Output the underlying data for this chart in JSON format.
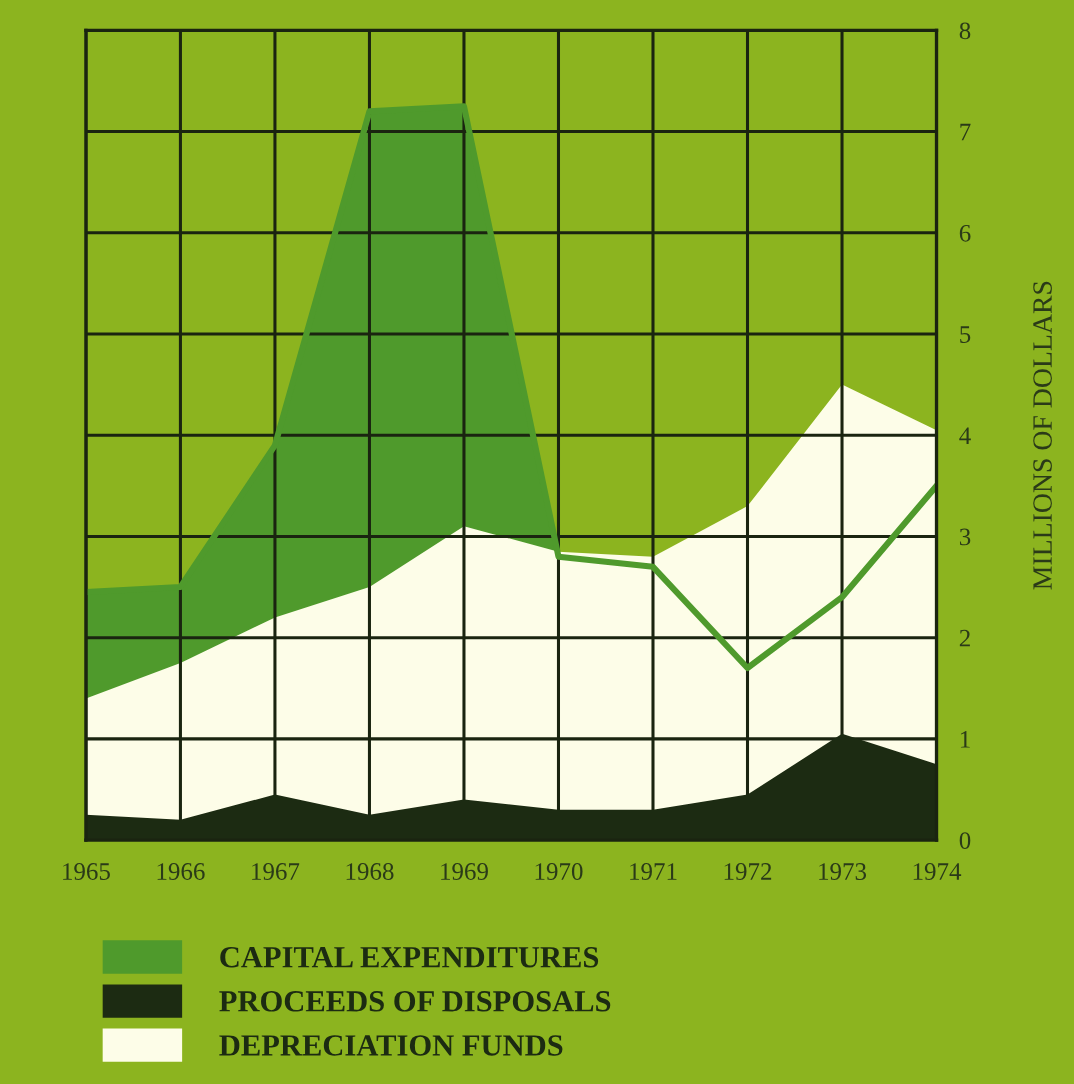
{
  "chart_data": {
    "type": "area",
    "ylabel": "MILLIONS OF DOLLARS",
    "x": [
      1965,
      1966,
      1967,
      1968,
      1969,
      1970,
      1971,
      1972,
      1973,
      1974
    ],
    "xlim": [
      1965,
      1974
    ],
    "xticks": [
      1965,
      1966,
      1967,
      1968,
      1969,
      1970,
      1971,
      1972,
      1973,
      1974
    ],
    "ylim": [
      0,
      8
    ],
    "yticks": [
      0,
      1,
      2,
      3,
      4,
      5,
      6,
      7,
      8
    ],
    "grid": true,
    "legend": "bottom",
    "series": [
      {
        "name": "CAPITAL EXPENDITURES",
        "color": "#4f9a2c",
        "values": [
          2.45,
          2.5,
          3.9,
          7.2,
          7.25,
          2.8,
          2.7,
          1.7,
          2.4,
          3.5
        ]
      },
      {
        "name": "PROCEEDS OF DISPOSALS",
        "color": "#1c2b12",
        "values": [
          0.25,
          0.2,
          0.45,
          0.25,
          0.4,
          0.3,
          0.3,
          0.45,
          1.05,
          0.75
        ]
      },
      {
        "name": "DEPRECIATION FUNDS",
        "color": "#fdfde8",
        "values": [
          1.4,
          1.75,
          2.2,
          2.5,
          3.1,
          2.85,
          2.8,
          3.3,
          4.5,
          4.05
        ]
      }
    ]
  }
}
